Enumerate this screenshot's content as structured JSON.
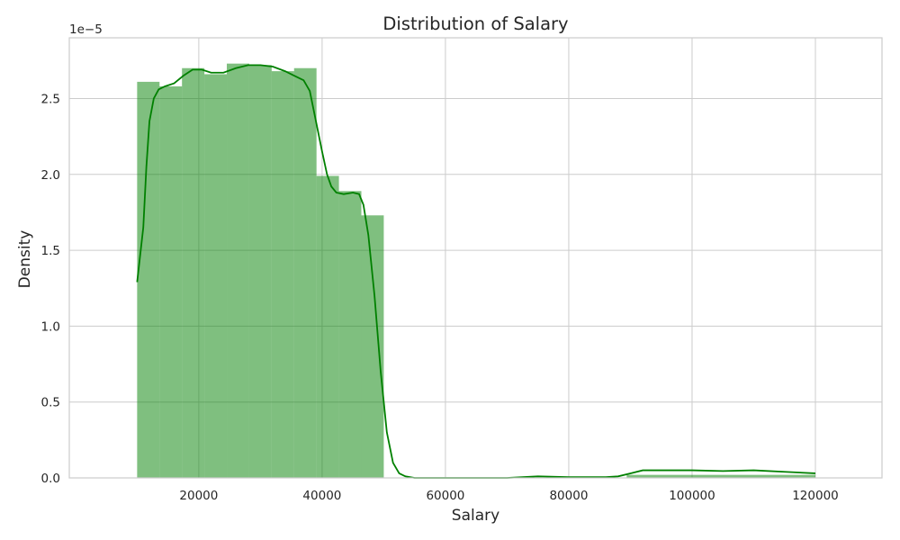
{
  "chart_data": {
    "type": "histogram",
    "title": "Distribution of Salary",
    "xlabel": "Salary",
    "ylabel": "Density",
    "y_offset_label": "1e−5",
    "y_scale_factor": 1e-05,
    "xlim": [
      -1000,
      130800
    ],
    "ylim": [
      0,
      2.9
    ],
    "xticks": [
      20000,
      40000,
      60000,
      80000,
      100000,
      120000
    ],
    "xtick_labels": [
      "20000",
      "40000",
      "60000",
      "80000",
      "100000",
      "120000"
    ],
    "yticks": [
      0.0,
      0.5,
      1.0,
      1.5,
      2.0,
      2.5
    ],
    "ytick_labels": [
      "0.0",
      "0.5",
      "1.0",
      "1.5",
      "2.0",
      "2.5"
    ],
    "grid": true,
    "colors": {
      "bar": "#008000",
      "bar_opacity": 0.5,
      "kde_line": "#008000",
      "grid": "#cccccc",
      "frame": "#cccccc"
    },
    "bins": [
      {
        "x0": 10000,
        "x1": 13636,
        "density": 2.61
      },
      {
        "x0": 13636,
        "x1": 17273,
        "density": 2.58
      },
      {
        "x0": 17273,
        "x1": 20909,
        "density": 2.7
      },
      {
        "x0": 20909,
        "x1": 24545,
        "density": 2.66
      },
      {
        "x0": 24545,
        "x1": 28182,
        "density": 2.73
      },
      {
        "x0": 28182,
        "x1": 31818,
        "density": 2.72
      },
      {
        "x0": 31818,
        "x1": 35455,
        "density": 2.68
      },
      {
        "x0": 35455,
        "x1": 39091,
        "density": 2.7
      },
      {
        "x0": 39091,
        "x1": 42727,
        "density": 1.99
      },
      {
        "x0": 42727,
        "x1": 46364,
        "density": 1.89
      },
      {
        "x0": 46364,
        "x1": 50000,
        "density": 1.73
      },
      {
        "x0": 50000,
        "x1": 53636,
        "density": 0.0
      },
      {
        "x0": 89394,
        "x1": 120000,
        "density": 0.02
      }
    ],
    "kde": {
      "x": [
        10000,
        11000,
        11500,
        12000,
        12700,
        13500,
        14500,
        16000,
        17500,
        19000,
        20500,
        22000,
        24000,
        26000,
        28000,
        30000,
        32000,
        34000,
        35500,
        37000,
        38000,
        39000,
        40000,
        40800,
        41500,
        42300,
        43500,
        45000,
        46000,
        46700,
        47500,
        48500,
        49500,
        50500,
        51500,
        52500,
        53500,
        55000,
        57000,
        60000,
        70000,
        75000,
        80000,
        86000,
        88000,
        90000,
        92000,
        100000,
        105000,
        110000,
        115000,
        120000
      ],
      "y": [
        1.29,
        1.65,
        2.05,
        2.35,
        2.5,
        2.56,
        2.58,
        2.6,
        2.65,
        2.69,
        2.69,
        2.67,
        2.67,
        2.7,
        2.72,
        2.72,
        2.71,
        2.68,
        2.65,
        2.62,
        2.55,
        2.35,
        2.15,
        2.0,
        1.92,
        1.88,
        1.87,
        1.88,
        1.87,
        1.8,
        1.6,
        1.2,
        0.7,
        0.3,
        0.1,
        0.03,
        0.01,
        0.0,
        0.0,
        0.0,
        0.0,
        0.01,
        0.005,
        0.005,
        0.01,
        0.03,
        0.05,
        0.05,
        0.045,
        0.05,
        0.04,
        0.03
      ]
    }
  }
}
